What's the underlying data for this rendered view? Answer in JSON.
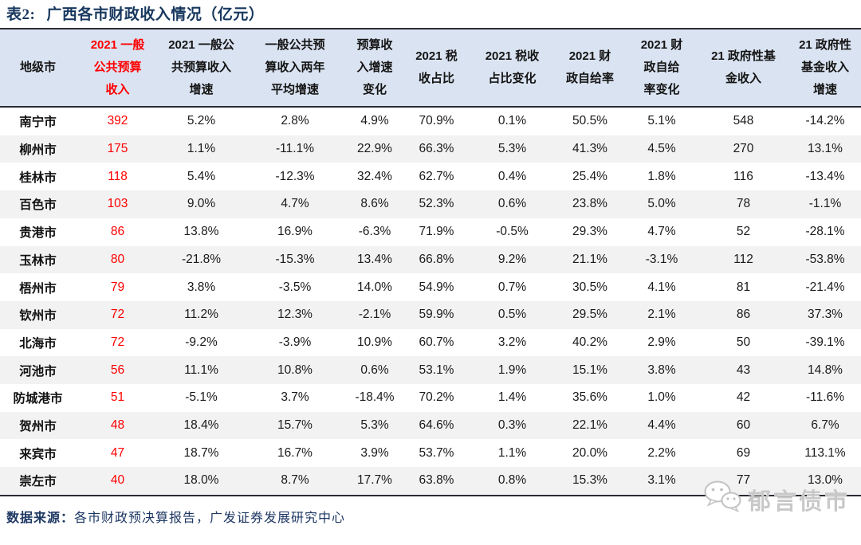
{
  "title": {
    "prefix": "表2:",
    "text": "广西各市财政收入情况（亿元）"
  },
  "table": {
    "columns": [
      {
        "label": "地级市",
        "red": false
      },
      {
        "label": "2021 一般\n公共预算\n收入",
        "red": true
      },
      {
        "label": "2021 一般公\n共预算收入\n增速",
        "red": false
      },
      {
        "label": "一般公共预\n算收入两年\n平均增速",
        "red": false
      },
      {
        "label": "预算收\n入增速\n变化",
        "red": false
      },
      {
        "label": "2021 税\n收占比",
        "red": false
      },
      {
        "label": "2021 税收\n占比变化",
        "red": false
      },
      {
        "label": "2021 财\n政自给率",
        "red": false
      },
      {
        "label": "2021 财\n政自给\n率变化",
        "red": false
      },
      {
        "label": "21 政府性基\n金收入",
        "red": false
      },
      {
        "label": "21 政府性\n基金收入\n增速",
        "red": false
      }
    ],
    "rows": [
      {
        "city": "南宁市",
        "values": [
          "392",
          "5.2%",
          "2.8%",
          "4.9%",
          "70.9%",
          "0.1%",
          "50.5%",
          "5.1%",
          "548",
          "-14.2%"
        ]
      },
      {
        "city": "柳州市",
        "values": [
          "175",
          "1.1%",
          "-11.1%",
          "22.9%",
          "66.3%",
          "5.3%",
          "41.3%",
          "4.5%",
          "270",
          "13.1%"
        ]
      },
      {
        "city": "桂林市",
        "values": [
          "118",
          "5.4%",
          "-12.3%",
          "32.4%",
          "62.7%",
          "0.4%",
          "25.4%",
          "1.8%",
          "116",
          "-13.4%"
        ]
      },
      {
        "city": "百色市",
        "values": [
          "103",
          "9.0%",
          "4.7%",
          "8.6%",
          "52.3%",
          "0.6%",
          "23.8%",
          "5.0%",
          "78",
          "-1.1%"
        ]
      },
      {
        "city": "贵港市",
        "values": [
          "86",
          "13.8%",
          "16.9%",
          "-6.3%",
          "71.9%",
          "-0.5%",
          "29.3%",
          "4.7%",
          "52",
          "-28.1%"
        ]
      },
      {
        "city": "玉林市",
        "values": [
          "80",
          "-21.8%",
          "-15.3%",
          "13.4%",
          "66.8%",
          "9.2%",
          "21.1%",
          "-3.1%",
          "112",
          "-53.8%"
        ]
      },
      {
        "city": "梧州市",
        "values": [
          "79",
          "3.8%",
          "-3.5%",
          "14.0%",
          "54.9%",
          "0.7%",
          "30.5%",
          "4.1%",
          "81",
          "-21.4%"
        ]
      },
      {
        "city": "钦州市",
        "values": [
          "72",
          "11.2%",
          "12.3%",
          "-2.1%",
          "59.9%",
          "0.5%",
          "29.5%",
          "2.1%",
          "86",
          "37.3%"
        ]
      },
      {
        "city": "北海市",
        "values": [
          "72",
          "-9.2%",
          "-3.9%",
          "10.9%",
          "60.7%",
          "3.2%",
          "40.2%",
          "2.9%",
          "50",
          "-39.1%"
        ]
      },
      {
        "city": "河池市",
        "values": [
          "56",
          "11.1%",
          "10.8%",
          "0.6%",
          "53.1%",
          "1.9%",
          "15.1%",
          "3.8%",
          "43",
          "14.8%"
        ]
      },
      {
        "city": "防城港市",
        "values": [
          "51",
          "-5.1%",
          "3.7%",
          "-18.4%",
          "70.2%",
          "1.4%",
          "35.6%",
          "1.0%",
          "42",
          "-11.6%"
        ]
      },
      {
        "city": "贺州市",
        "values": [
          "48",
          "18.4%",
          "15.7%",
          "5.3%",
          "64.6%",
          "0.3%",
          "22.1%",
          "4.4%",
          "60",
          "6.7%"
        ]
      },
      {
        "city": "来宾市",
        "values": [
          "47",
          "18.7%",
          "16.7%",
          "3.9%",
          "53.7%",
          "1.1%",
          "20.0%",
          "2.2%",
          "69",
          "113.1%"
        ]
      },
      {
        "city": "崇左市",
        "values": [
          "40",
          "18.0%",
          "8.7%",
          "17.7%",
          "63.8%",
          "0.8%",
          "15.3%",
          "3.1%",
          "77",
          "13.0%"
        ]
      }
    ]
  },
  "footer": {
    "source_label": "数据来源：",
    "source_text": "各市财政预决算报告，广发证券发展研究中心"
  },
  "watermark": {
    "icon": "wechat-icon",
    "text": "郁言债市"
  },
  "colors": {
    "accent_red": "#fe0000",
    "title_navy": "#17375e",
    "header_bg": "#dae3f1",
    "stripe_gray": "#f2f2f2",
    "border_dark": "#2b2b35",
    "watermark_gray": "#c8c8c8"
  }
}
